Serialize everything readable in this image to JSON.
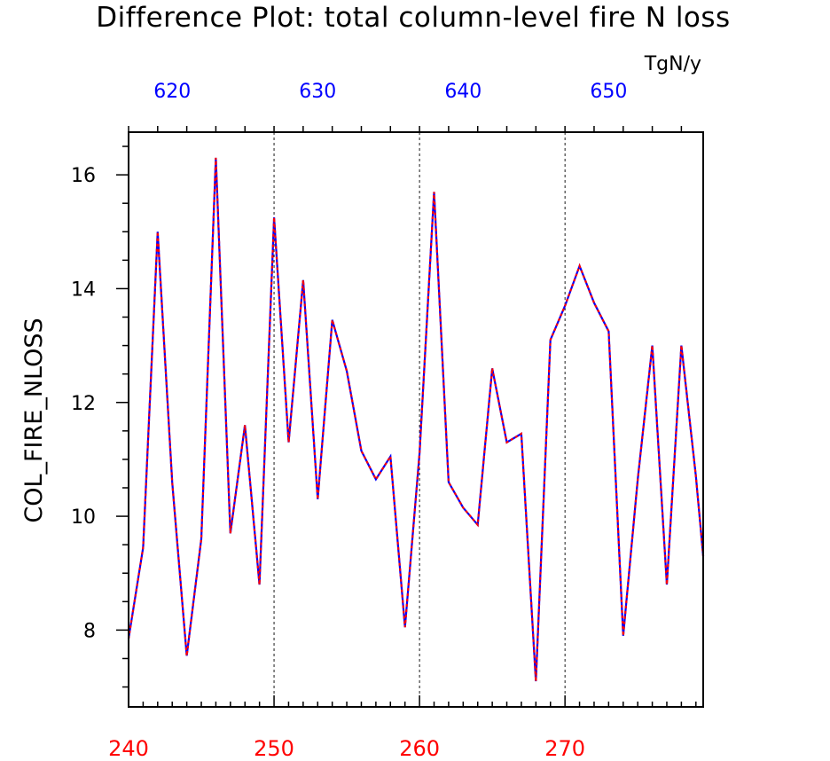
{
  "chart_data": {
    "type": "line",
    "title": "Difference Plot: total column-level fire N loss",
    "units": "TgN/y",
    "ylabel": "COL_FIRE_NLOSS",
    "xlabel": "",
    "xlim_bottom": [
      240,
      279.5
    ],
    "xlim_top": [
      617,
      656.5
    ],
    "ylim": [
      6.65,
      16.75
    ],
    "bottom_ticks": [
      240,
      250,
      260,
      270
    ],
    "top_ticks": [
      620,
      630,
      640,
      650
    ],
    "y_ticks": [
      8,
      10,
      12,
      14,
      16
    ],
    "grid": "dashed vertical lines at major ticks",
    "colors": {
      "bottom_axis": "#ff0000",
      "top_axis": "#0000ff",
      "series_base": "#0000ff",
      "series_overlay": "#ff0000"
    },
    "x": [
      240,
      241,
      242,
      243,
      244,
      245,
      246,
      247,
      248,
      249,
      250,
      251,
      252,
      253,
      254,
      255,
      256,
      257,
      258,
      259,
      260,
      261,
      262,
      263,
      264,
      265,
      266,
      267,
      268,
      269,
      270,
      271,
      272,
      273,
      274,
      275,
      276,
      277,
      278,
      279,
      279.5
    ],
    "series": [
      {
        "values": [
          7.85,
          9.45,
          15.0,
          10.6,
          7.55,
          9.6,
          16.3,
          9.7,
          11.6,
          8.8,
          15.25,
          11.3,
          14.15,
          10.3,
          13.45,
          12.55,
          11.15,
          10.65,
          11.05,
          8.05,
          11.1,
          15.7,
          10.6,
          10.15,
          9.85,
          12.6,
          11.3,
          11.45,
          7.1,
          13.1,
          13.7,
          14.4,
          13.75,
          13.25,
          7.9,
          10.65,
          13.0,
          8.8,
          13.0,
          10.7,
          9.3
        ]
      }
    ]
  }
}
